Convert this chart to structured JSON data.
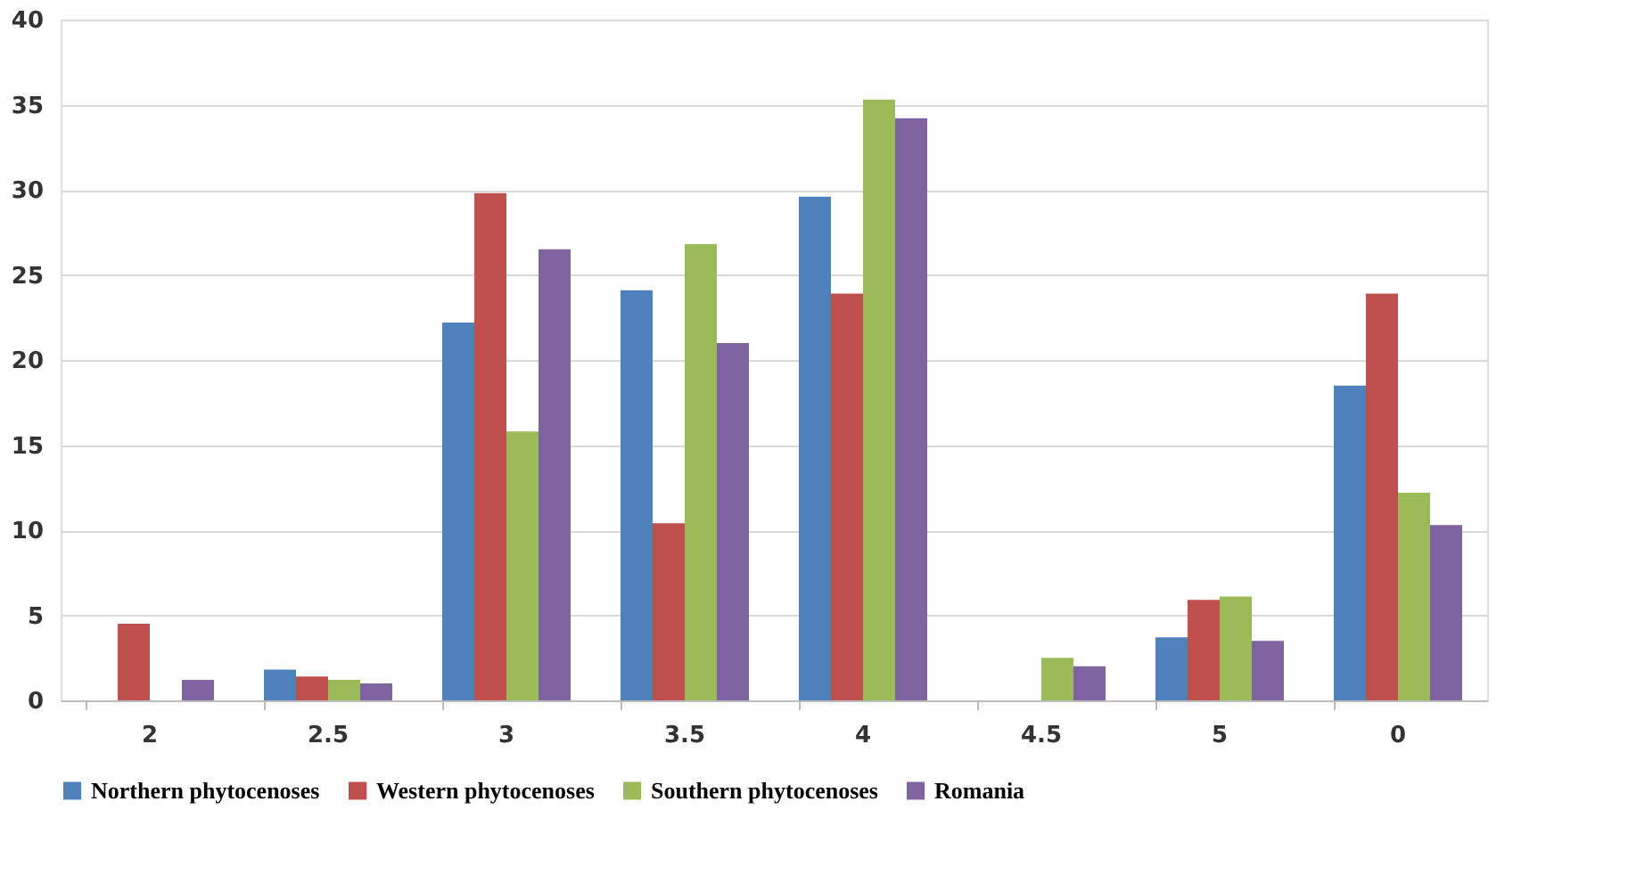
{
  "chart_data": {
    "type": "bar",
    "categories": [
      "2",
      "2.5",
      "3",
      "3.5",
      "4",
      "4.5",
      "5",
      "0"
    ],
    "series": [
      {
        "name": "Northern phytocenoses",
        "color": "#4f81bd",
        "values": [
          null,
          1.8,
          22.2,
          24.1,
          29.6,
          null,
          3.7,
          18.5
        ]
      },
      {
        "name": "Western phytocenoses",
        "color": "#c0504d",
        "values": [
          4.5,
          1.4,
          29.8,
          10.4,
          23.9,
          null,
          5.9,
          23.9
        ]
      },
      {
        "name": "Southern phytocenoses",
        "color": "#9bbb59",
        "values": [
          null,
          1.2,
          15.8,
          26.8,
          35.3,
          2.5,
          6.1,
          12.2
        ]
      },
      {
        "name": "Romania",
        "color": "#8064a2",
        "values": [
          1.2,
          1.0,
          26.5,
          21.0,
          34.2,
          2.0,
          3.5,
          10.3
        ]
      }
    ],
    "ylim": [
      0,
      40
    ],
    "yticks": [
      0,
      5,
      10,
      15,
      20,
      25,
      30,
      35,
      40
    ],
    "grid": "y",
    "legend": "bottom"
  }
}
